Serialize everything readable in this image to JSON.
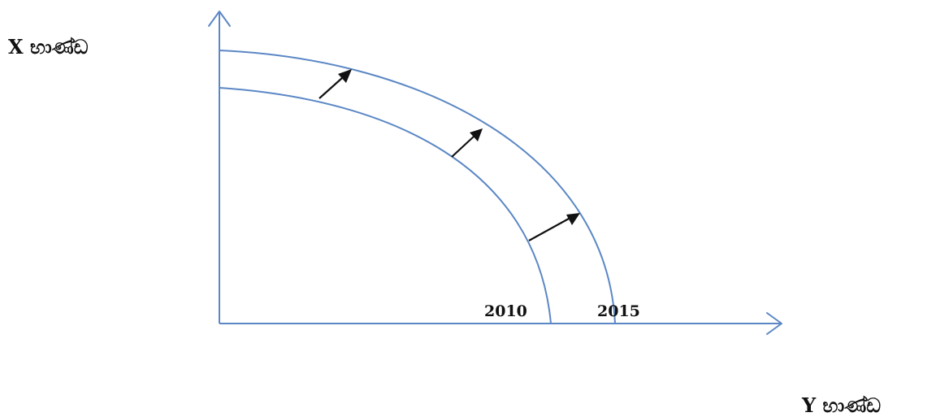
{
  "axes": {
    "vertical_label": "X භාණ්ඩ",
    "horizontal_label": "Y භාණ්ඩ"
  },
  "curves": [
    {
      "label": "2010"
    },
    {
      "label": "2015"
    }
  ],
  "colors": {
    "axis": "#5b87c5",
    "curve": "#5b87c5",
    "arrow": "#111111",
    "text": "#111111"
  }
}
